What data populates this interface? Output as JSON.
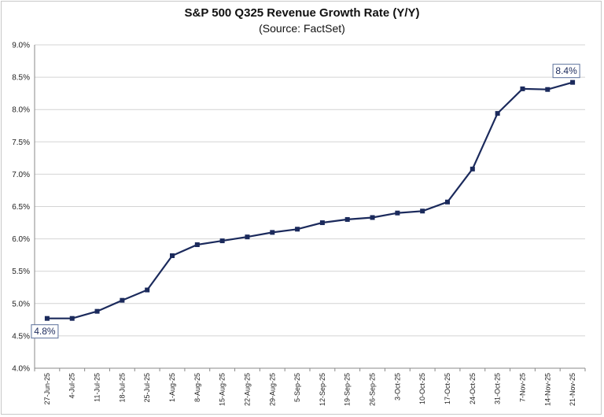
{
  "chart_data": {
    "type": "line",
    "title": "S&P 500 Q325 Revenue Growth Rate (Y/Y)",
    "subtitle": "(Source: FactSet)",
    "xlabel": "",
    "ylabel": "",
    "ylim": [
      4.0,
      9.0
    ],
    "y_ticks": [
      "4.0%",
      "4.5%",
      "5.0%",
      "5.5%",
      "6.0%",
      "6.5%",
      "7.0%",
      "7.5%",
      "8.0%",
      "8.5%",
      "9.0%"
    ],
    "y_tick_values": [
      4.0,
      4.5,
      5.0,
      5.5,
      6.0,
      6.5,
      7.0,
      7.5,
      8.0,
      8.5,
      9.0
    ],
    "grid": true,
    "categories": [
      "27-Jun-25",
      "4-Jul-25",
      "11-Jul-25",
      "18-Jul-25",
      "25-Jul-25",
      "1-Aug-25",
      "8-Aug-25",
      "15-Aug-25",
      "22-Aug-25",
      "29-Aug-25",
      "5-Sep-25",
      "12-Sep-25",
      "19-Sep-25",
      "26-Sep-25",
      "3-Oct-25",
      "10-Oct-25",
      "17-Oct-25",
      "24-Oct-25",
      "31-Oct-25",
      "7-Nov-25",
      "14-Nov-25",
      "21-Nov-25"
    ],
    "series": [
      {
        "color": "#1b2a5c",
        "values": [
          4.77,
          4.77,
          4.88,
          5.05,
          5.21,
          5.74,
          5.91,
          5.97,
          6.03,
          6.1,
          6.15,
          6.25,
          6.3,
          6.33,
          6.4,
          6.43,
          6.57,
          7.08,
          7.94,
          8.32,
          8.31,
          8.42
        ]
      }
    ],
    "annotations": [
      {
        "text": "4.8%",
        "index": 0
      },
      {
        "text": "8.4%",
        "index": 21
      }
    ]
  }
}
